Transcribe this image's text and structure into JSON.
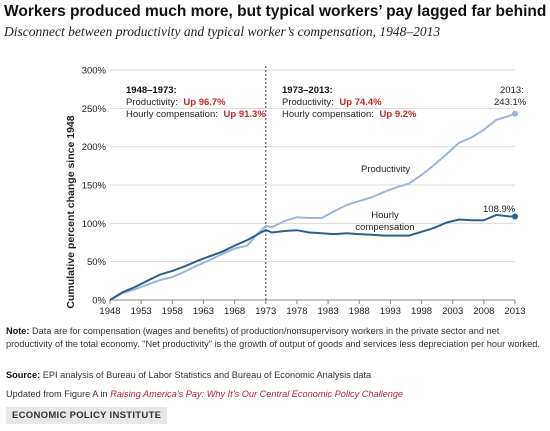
{
  "title": "Workers produced much more, but typical workers’ pay lagged far behind",
  "subtitle": "Disconnect between productivity and typical worker’s compensation, 1948–2013",
  "chart_data": {
    "type": "line",
    "ylabel": "Cumulative percent change since 1948",
    "xlabel": "",
    "ylim": [
      0,
      300
    ],
    "xlim": [
      1948,
      2013
    ],
    "yticks": [
      0,
      50,
      100,
      150,
      200,
      250,
      300
    ],
    "ytick_labels": [
      "0%",
      "50%",
      "100%",
      "150%",
      "200%",
      "250%",
      "300%"
    ],
    "xticks": [
      1948,
      1953,
      1958,
      1963,
      1968,
      1973,
      1978,
      1983,
      1988,
      1993,
      1998,
      2003,
      2008,
      2013
    ],
    "grid": "horizontal",
    "divider_year": 1973,
    "series": [
      {
        "name": "Productivity",
        "color": "#9db5d6",
        "x": [
          1948,
          1950,
          1952,
          1954,
          1956,
          1958,
          1960,
          1962,
          1964,
          1966,
          1968,
          1970,
          1972,
          1973,
          1974,
          1976,
          1978,
          1980,
          1982,
          1984,
          1986,
          1988,
          1990,
          1992,
          1994,
          1996,
          1998,
          2000,
          2002,
          2004,
          2006,
          2008,
          2010,
          2012,
          2013
        ],
        "values": [
          0,
          9,
          14,
          20,
          26,
          30,
          37,
          45,
          52,
          60,
          67,
          71,
          89,
          96.7,
          95,
          103,
          108,
          107,
          107,
          116,
          124,
          129,
          134,
          141,
          147,
          152,
          163,
          176,
          190,
          205,
          212,
          222,
          235,
          240,
          243.1
        ]
      },
      {
        "name": "Hourly compensation",
        "color": "#2e5f8a",
        "x": [
          1948,
          1950,
          1952,
          1954,
          1956,
          1958,
          1960,
          1962,
          1964,
          1966,
          1968,
          1970,
          1972,
          1973,
          1974,
          1976,
          1978,
          1980,
          1982,
          1984,
          1986,
          1988,
          1990,
          1992,
          1994,
          1996,
          1998,
          2000,
          2002,
          2004,
          2006,
          2008,
          2010,
          2012,
          2013
        ],
        "values": [
          0,
          10,
          17,
          25,
          33,
          38,
          44,
          51,
          57,
          63,
          71,
          78,
          87,
          91.3,
          88,
          90,
          91,
          88,
          87,
          86,
          87,
          86,
          85,
          84,
          84,
          84,
          89,
          94,
          101,
          105,
          104,
          104,
          111,
          109,
          108.9
        ]
      }
    ],
    "period_boxes": [
      {
        "title": "1948–1973:",
        "productivity_label": "Productivity:",
        "productivity_value": "Up 96.7%",
        "compensation_label": "Hourly compensation:",
        "compensation_value": "Up 91.3%"
      },
      {
        "title": "1973–2013:",
        "productivity_label": "Productivity:",
        "productivity_value": "Up 74.4%",
        "compensation_label": "Hourly compensation:",
        "compensation_value": "Up 9.2%"
      }
    ],
    "annotations": {
      "productivity_line1": "2013:",
      "productivity_line2": "243.1%",
      "productivity_name": "Productivity",
      "compensation_end": "108.9%",
      "compensation_name_line1": "Hourly",
      "compensation_name_line2": "compensation"
    },
    "colors": {
      "highlight": "#c0272d",
      "grid": "#d9d9d9",
      "divider": "#444444"
    }
  },
  "note_label": "Note:",
  "note_text": "Data are for compensation (wages and benefits) of production/nonsupervisory workers in the private sector and net productivity of the total economy. \"Net productivity\" is the growth of output of goods and services less depreciation per hour worked.",
  "source_label": "Source:",
  "source_text": "EPI analysis of Bureau of Labor Statistics and Bureau of Economic Analysis data",
  "updated_prefix": "Updated from Figure A in ",
  "updated_link": "Raising America’s Pay: Why It’s Our Central Economic Policy Challenge",
  "footer_brand": "ECONOMIC POLICY INSTITUTE"
}
